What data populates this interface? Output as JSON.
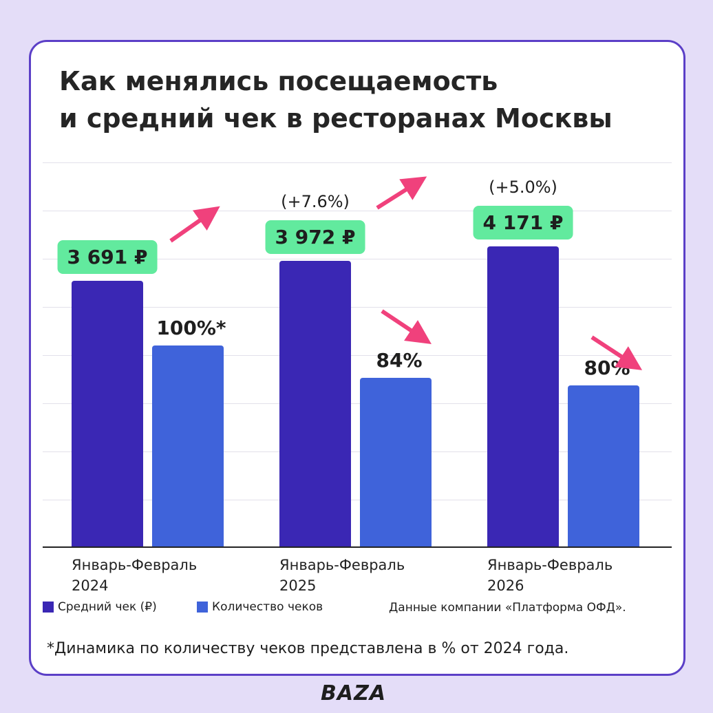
{
  "chart_data": {
    "type": "bar",
    "title": [
      "Как менялись посещаемость",
      "и средний чек в ресторанах Москвы"
    ],
    "categories": [
      "Январь-Февраль\n2024",
      "Январь-Февраль\n2025",
      "Январь-Февраль\n2026"
    ],
    "series": [
      {
        "name": "Средний чек (₽)",
        "color": "#3a27b4",
        "values": [
          3691,
          3972,
          4171
        ],
        "value_labels": [
          "3 691 ₽",
          "3 972 ₽",
          "4 171 ₽"
        ],
        "change_labels": [
          null,
          "(+7.6%)",
          "(+5.0%)"
        ]
      },
      {
        "name": "Количество чеков",
        "color": "#3f63da",
        "axis": "y2",
        "values": [
          100,
          84,
          80
        ],
        "value_labels": [
          "100%*",
          "84%",
          "80%"
        ]
      }
    ],
    "ylim": [
      0,
      4200
    ],
    "y2lim": [
      0,
      150
    ],
    "source": "Данные компании «Платформа ОФД».",
    "footnote": "*Динамика по количеству чеков представлена в % от 2024 года."
  },
  "brand": "BAZA"
}
